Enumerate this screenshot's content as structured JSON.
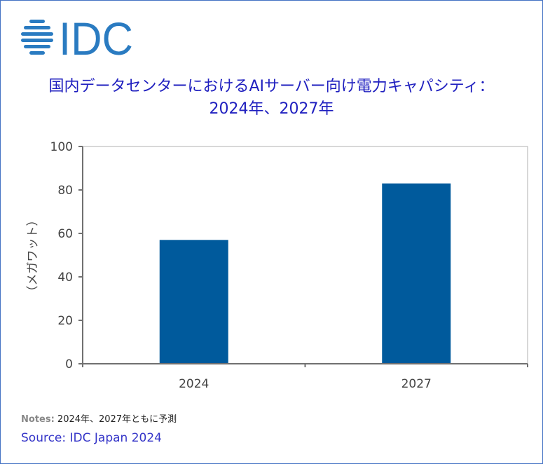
{
  "logo": {
    "text": "IDC",
    "color": "#2a7bc1"
  },
  "title_line1": "国内データセンターにおけるAIサーバー向け電力キャパシティ：",
  "title_line2": "2024年、2027年",
  "chart_data": {
    "type": "bar",
    "categories": [
      "2024",
      "2027"
    ],
    "values": [
      57,
      83
    ],
    "ylabel": "（メガワット）",
    "ylim": [
      0,
      100
    ],
    "yticks": [
      0,
      20,
      40,
      60,
      80,
      100
    ],
    "bar_color": "#005a9c",
    "grid": false
  },
  "notes": {
    "label": "Notes:",
    "text": "2024年、2027年ともに予測"
  },
  "source": "Source: IDC Japan 2024"
}
